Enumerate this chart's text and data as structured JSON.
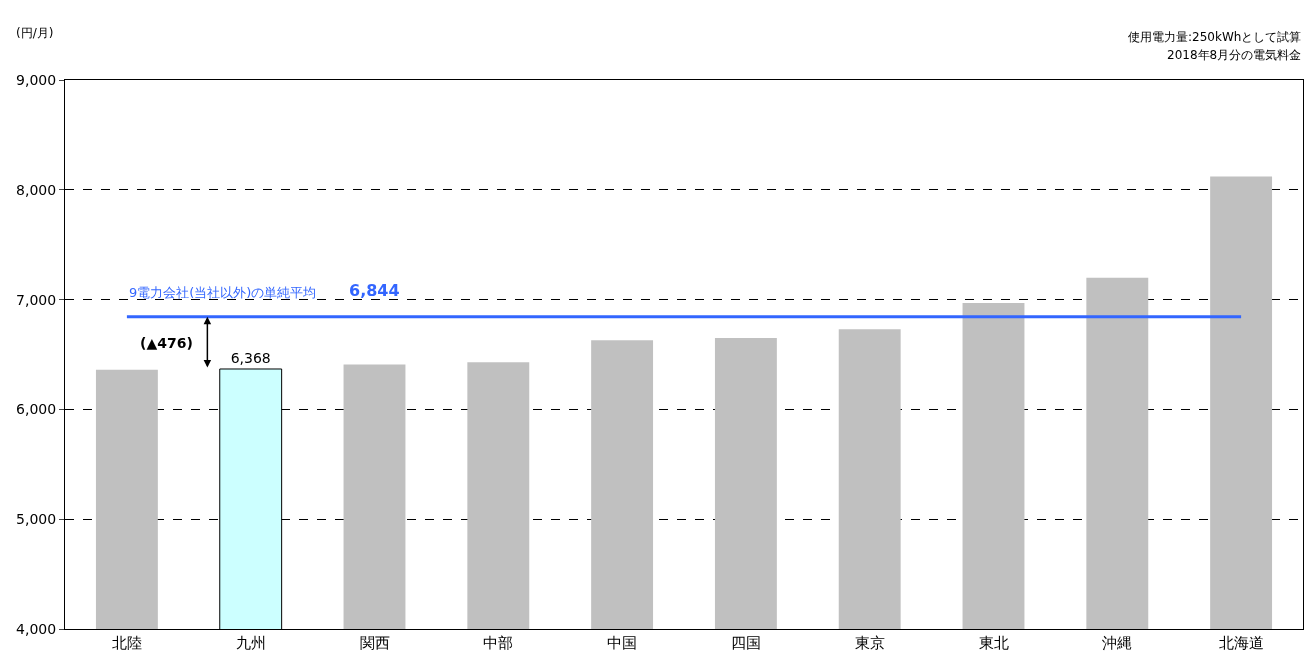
{
  "chart_data": {
    "type": "bar",
    "ylabel": "(円/月)",
    "categories": [
      "北陸",
      "九州",
      "関西",
      "中部",
      "中国",
      "四国",
      "東京",
      "東北",
      "沖縄",
      "北海道"
    ],
    "values": [
      6360,
      6368,
      6410,
      6430,
      6630,
      6650,
      6730,
      6970,
      7200,
      8120
    ],
    "colors": [
      "#c0c0c0",
      "#ccffff",
      "#c0c0c0",
      "#c0c0c0",
      "#c0c0c0",
      "#c0c0c0",
      "#c0c0c0",
      "#c0c0c0",
      "#c0c0c0",
      "#c0c0c0"
    ],
    "value_labels": [
      null,
      "6,368",
      null,
      null,
      null,
      null,
      null,
      null,
      null,
      null
    ],
    "ylim": [
      4000,
      9000
    ],
    "yticks": [
      {
        "value": 4000,
        "label": "4,000"
      },
      {
        "value": 5000,
        "label": "5,000"
      },
      {
        "value": 6000,
        "label": "6,000"
      },
      {
        "value": 7000,
        "label": "7,000"
      },
      {
        "value": 8000,
        "label": "8,000"
      },
      {
        "value": 9000,
        "label": "9,000"
      }
    ],
    "grid": "y",
    "legend": false,
    "ref_lines": [
      {
        "axis": "y",
        "value": 6844,
        "label": "9電力会社(当社以外)の単純平均",
        "color": "#3366ff"
      }
    ],
    "annotations": [
      "6,844",
      "(▲476)",
      "使用電力量:250kWhとして試算",
      "2018年8月分の電気料金"
    ]
  }
}
